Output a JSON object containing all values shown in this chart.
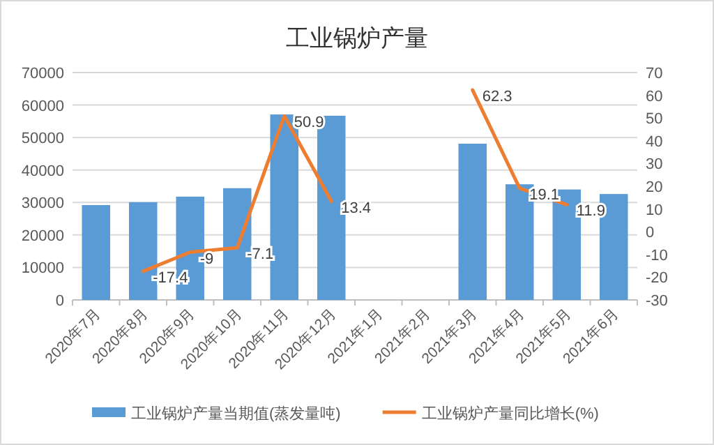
{
  "chart_data": {
    "type": "bar",
    "title": "工业锅炉产量",
    "categories": [
      "2020年7月",
      "2020年8月",
      "2020年9月",
      "2020年10月",
      "2020年11月",
      "2020年12月",
      "2021年1月",
      "2021年2月",
      "2021年3月",
      "2021年4月",
      "2021年5月",
      "2021年6月"
    ],
    "series": [
      {
        "name": "工业锅炉产量当期值(蒸发量吨)",
        "color": "#5b9bd5",
        "values": [
          29200,
          30100,
          31800,
          34400,
          57100,
          56700,
          null,
          null,
          48100,
          35600,
          34000,
          32600
        ]
      },
      {
        "name": "工业锅炉产量同比增长(%)",
        "type": "line",
        "axis": "y2",
        "color": "#ed7d31",
        "values": [
          null,
          -17.4,
          -9,
          -7.1,
          50.9,
          13.4,
          null,
          null,
          62.3,
          19.1,
          11.9,
          null
        ],
        "value_labels": [
          null,
          "-17.4",
          "-9",
          "-7.1",
          "50.9",
          "13.4",
          null,
          null,
          "62.3",
          "19.1",
          "11.9",
          null
        ]
      }
    ],
    "ylim": [
      0,
      70000
    ],
    "yticks": [
      0,
      10000,
      20000,
      30000,
      40000,
      50000,
      60000,
      70000
    ],
    "y2lim": [
      -30,
      70
    ],
    "y2ticks": [
      -30,
      -20,
      -10,
      0,
      10,
      20,
      30,
      40,
      50,
      60,
      70
    ],
    "grid": "y",
    "legend": "bottom"
  }
}
